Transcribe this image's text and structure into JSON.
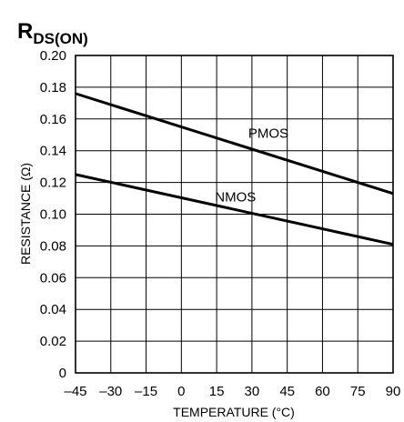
{
  "chart_data": {
    "type": "line",
    "title_main": "R",
    "title_sub": "DS(ON)",
    "xlabel": "TEMPERATURE (°C)",
    "ylabel": "RESISTANCE (Ω)",
    "xlim": [
      -45,
      90
    ],
    "ylim": [
      0,
      0.2
    ],
    "grid": true,
    "x_ticks": [
      -45,
      -30,
      -15,
      0,
      15,
      30,
      45,
      60,
      75,
      90
    ],
    "x_tick_labels": [
      "–45",
      "–30",
      "–15",
      "0",
      "15",
      "30",
      "45",
      "60",
      "75",
      "90"
    ],
    "y_ticks": [
      0,
      0.02,
      0.04,
      0.06,
      0.08,
      0.1,
      0.12,
      0.14,
      0.16,
      0.18,
      0.2
    ],
    "y_tick_labels": [
      "0",
      "0.02",
      "0.04",
      "0.06",
      "0.08",
      "0.10",
      "0.12",
      "0.14",
      "0.16",
      "0.18",
      "0.20"
    ],
    "series": [
      {
        "name": "PMOS",
        "x": [
          -45,
          90
        ],
        "y": [
          0.176,
          0.113
        ],
        "label_at": [
          37,
          0.148
        ]
      },
      {
        "name": "NMOS",
        "x": [
          -45,
          90
        ],
        "y": [
          0.125,
          0.081
        ],
        "label_at": [
          23,
          0.108
        ]
      }
    ]
  }
}
